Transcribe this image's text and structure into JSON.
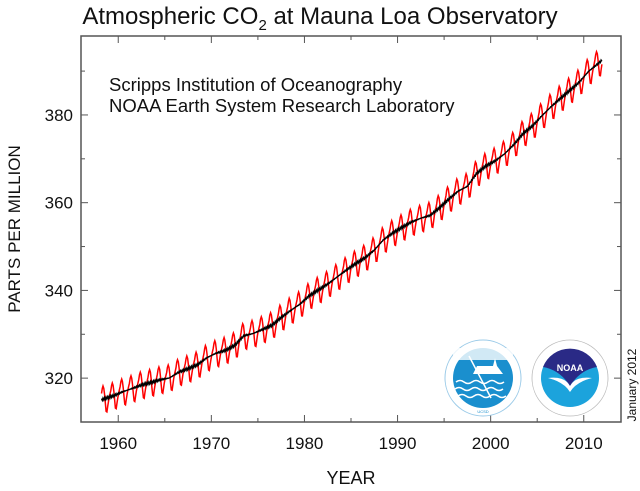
{
  "chart_data": {
    "type": "line",
    "title": "Atmospheric CO",
    "title_subscript": "2",
    "title_suffix": " at Mauna Loa Observatory",
    "annotations": [
      "Scripps Institution of Oceanography",
      "NOAA Earth System Research Laboratory"
    ],
    "xlabel": "YEAR",
    "ylabel": "PARTS PER MILLION",
    "xlim": [
      1956,
      2014
    ],
    "ylim": [
      310,
      398
    ],
    "xticks": [
      1960,
      1970,
      1980,
      1990,
      2000,
      2010
    ],
    "yticks": [
      320,
      340,
      360,
      380
    ],
    "grid": false,
    "date_stamp": "January 2012",
    "series": [
      {
        "kind": "monthly",
        "color": "#ff0000",
        "annual_mean_years": [
          1958,
          1959,
          1960,
          1961,
          1962,
          1963,
          1964,
          1965,
          1966,
          1967,
          1968,
          1969,
          1970,
          1971,
          1972,
          1973,
          1974,
          1975,
          1976,
          1977,
          1978,
          1979,
          1980,
          1981,
          1982,
          1983,
          1984,
          1985,
          1986,
          1987,
          1988,
          1989,
          1990,
          1991,
          1992,
          1993,
          1994,
          1995,
          1996,
          1997,
          1998,
          1999,
          2000,
          2001,
          2002,
          2003,
          2004,
          2005,
          2006,
          2007,
          2008,
          2009,
          2010,
          2011
        ],
        "annual_mean_ppm": [
          315.3,
          315.98,
          316.91,
          317.64,
          318.45,
          318.99,
          319.62,
          320.04,
          321.38,
          322.16,
          323.04,
          324.62,
          325.68,
          326.32,
          327.45,
          329.68,
          330.18,
          331.11,
          332.04,
          333.83,
          335.4,
          336.84,
          338.75,
          340.11,
          341.45,
          343.05,
          344.65,
          346.12,
          347.42,
          349.19,
          351.57,
          353.12,
          354.39,
          355.61,
          356.45,
          357.1,
          358.83,
          360.82,
          362.61,
          363.73,
          366.7,
          368.38,
          369.55,
          371.14,
          373.28,
          375.8,
          377.52,
          379.8,
          381.9,
          383.79,
          385.6,
          387.43,
          389.9,
          391.65
        ],
        "seasonal_cycle_ppm": [
          0.0,
          0.7,
          1.4,
          2.5,
          3.0,
          2.4,
          0.9,
          -1.2,
          -3.0,
          -3.2,
          -2.0,
          -0.9
        ]
      },
      {
        "kind": "seasonally-adjusted trend",
        "color": "#000000"
      }
    ]
  },
  "logos": {
    "scripps": {
      "text": "SCRIPPS INSTITUTION OF OCEANOGRAPHY",
      "bottom": "UCSD",
      "color": "#1a8fce"
    },
    "noaa": {
      "text": "NATIONAL OCEANIC AND ATMOSPHERIC ADMINISTRATION",
      "center": "NOAA",
      "bottom": "U.S. DEPARTMENT OF COMMERCE",
      "color": "#2a2a86",
      "accent": "#1ca3dc"
    }
  }
}
